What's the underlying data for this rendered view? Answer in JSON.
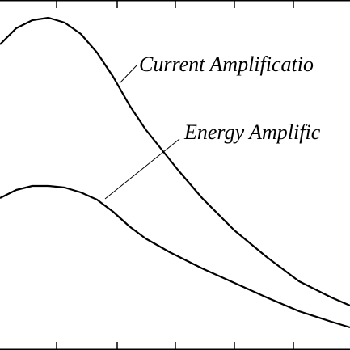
{
  "chart_data": {
    "type": "line",
    "xlim": [
      0,
      433
    ],
    "ylim": [
      0,
      433
    ],
    "xticks": [
      70,
      145,
      217,
      290,
      363
    ],
    "series": [
      {
        "name": "Current Amplificatio",
        "color": "#000000",
        "x": [
          0,
          20,
          40,
          60,
          80,
          100,
          120,
          140,
          160,
          180,
          200,
          220,
          250,
          290,
          330,
          370,
          410,
          433
        ],
        "values": [
          378,
          398,
          408,
          411,
          405,
          391,
          368,
          338,
          303,
          273,
          248,
          223,
          188,
          148,
          115,
          85,
          65,
          55
        ]
      },
      {
        "name": "Energy Amplific",
        "color": "#000000",
        "x": [
          0,
          20,
          40,
          60,
          80,
          100,
          120,
          140,
          160,
          180,
          210,
          250,
          290,
          330,
          370,
          410,
          433
        ],
        "values": [
          188,
          198,
          203,
          203,
          201,
          195,
          186,
          171,
          153,
          138,
          121,
          101,
          83,
          65,
          48,
          35,
          28
        ]
      }
    ]
  }
}
